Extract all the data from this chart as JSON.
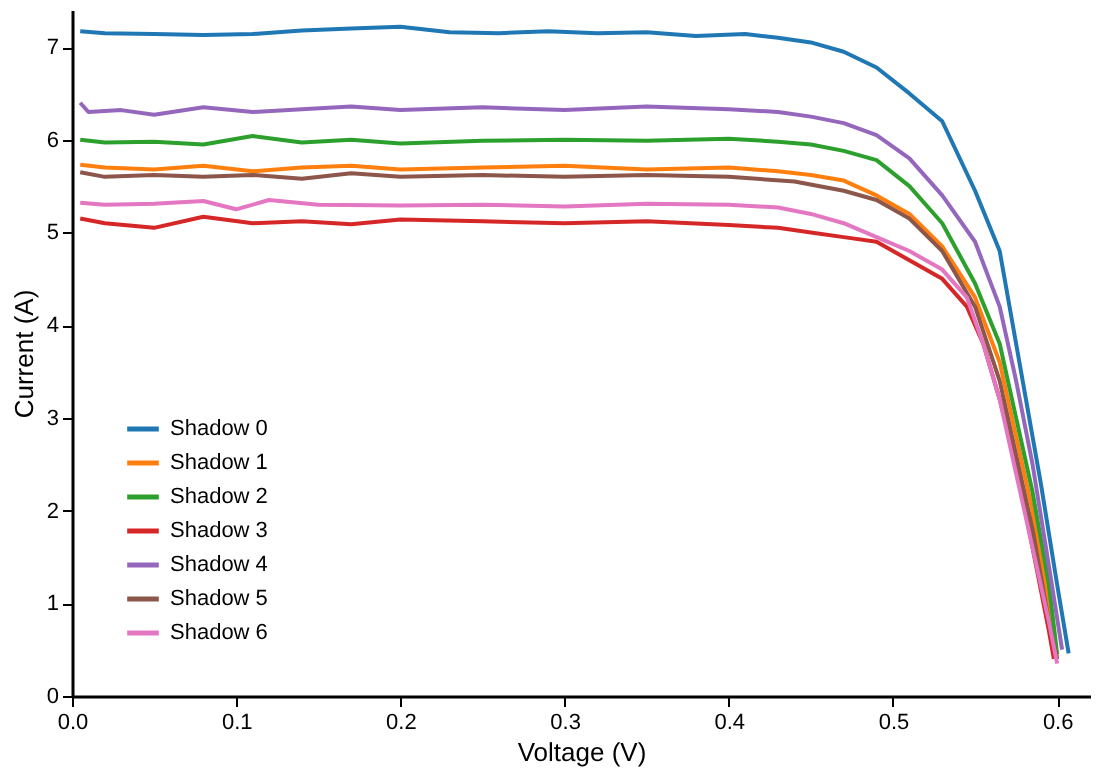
{
  "chart_data": {
    "type": "line",
    "xlabel": "Voltage (V)",
    "ylabel": "Current (A)",
    "xlim": [
      0,
      0.62
    ],
    "ylim": [
      0,
      7.4
    ],
    "xticks": [
      {
        "value": 0,
        "label": "0.0"
      },
      0.1,
      0.2,
      0.3,
      0.4,
      0.5,
      0.6
    ],
    "yticks": [
      0,
      1,
      2,
      3,
      4,
      5,
      6,
      7
    ],
    "grid": false,
    "legend": "bottom left",
    "marker": "none",
    "line_style": "solid",
    "series": [
      {
        "name": "Shadow 0",
        "color": "#1f77b4",
        "x": [
          0.005,
          0.02,
          0.05,
          0.08,
          0.11,
          0.14,
          0.17,
          0.2,
          0.23,
          0.26,
          0.29,
          0.32,
          0.35,
          0.38,
          0.41,
          0.43,
          0.45,
          0.47,
          0.49,
          0.51,
          0.53,
          0.55,
          0.565,
          0.58,
          0.59,
          0.6,
          0.607
        ],
        "values": [
          7.17,
          7.15,
          7.14,
          7.13,
          7.14,
          7.18,
          7.2,
          7.22,
          7.16,
          7.15,
          7.17,
          7.15,
          7.16,
          7.12,
          7.14,
          7.1,
          7.05,
          6.95,
          6.78,
          6.5,
          6.2,
          5.45,
          4.8,
          3.3,
          2.3,
          1.2,
          0.46
        ]
      },
      {
        "name": "Shadow 1",
        "color": "#ff7f0e",
        "x": [
          0.005,
          0.02,
          0.05,
          0.08,
          0.11,
          0.14,
          0.17,
          0.2,
          0.25,
          0.3,
          0.35,
          0.4,
          0.43,
          0.45,
          0.47,
          0.49,
          0.51,
          0.53,
          0.55,
          0.565,
          0.575,
          0.585,
          0.595,
          0.6
        ],
        "values": [
          5.73,
          5.7,
          5.68,
          5.72,
          5.66,
          5.7,
          5.72,
          5.68,
          5.7,
          5.72,
          5.68,
          5.7,
          5.66,
          5.62,
          5.56,
          5.4,
          5.2,
          4.85,
          4.3,
          3.6,
          2.8,
          2.0,
          1.0,
          0.4
        ]
      },
      {
        "name": "Shadow 2",
        "color": "#2ca02c",
        "x": [
          0.005,
          0.02,
          0.05,
          0.08,
          0.11,
          0.14,
          0.17,
          0.2,
          0.25,
          0.3,
          0.35,
          0.4,
          0.43,
          0.45,
          0.47,
          0.49,
          0.51,
          0.53,
          0.55,
          0.565,
          0.575,
          0.585,
          0.595,
          0.6
        ],
        "values": [
          6.0,
          5.97,
          5.98,
          5.95,
          6.04,
          5.97,
          6.0,
          5.96,
          5.99,
          6.0,
          5.99,
          6.01,
          5.98,
          5.95,
          5.88,
          5.78,
          5.5,
          5.1,
          4.45,
          3.8,
          3.0,
          2.2,
          1.2,
          0.45
        ]
      },
      {
        "name": "Shadow 3",
        "color": "#d62728",
        "x": [
          0.005,
          0.02,
          0.05,
          0.08,
          0.11,
          0.14,
          0.17,
          0.2,
          0.25,
          0.3,
          0.35,
          0.4,
          0.43,
          0.45,
          0.47,
          0.49,
          0.51,
          0.53,
          0.545,
          0.555,
          0.565,
          0.575,
          0.585,
          0.595,
          0.598
        ],
        "values": [
          5.15,
          5.1,
          5.05,
          5.17,
          5.1,
          5.12,
          5.09,
          5.14,
          5.12,
          5.1,
          5.12,
          5.08,
          5.05,
          5.0,
          4.95,
          4.9,
          4.7,
          4.5,
          4.2,
          3.8,
          3.2,
          2.5,
          1.6,
          0.7,
          0.4
        ]
      },
      {
        "name": "Shadow 4",
        "color": "#9467bd",
        "x": [
          0.005,
          0.01,
          0.03,
          0.05,
          0.08,
          0.11,
          0.14,
          0.17,
          0.2,
          0.25,
          0.3,
          0.35,
          0.4,
          0.43,
          0.45,
          0.47,
          0.49,
          0.51,
          0.53,
          0.55,
          0.565,
          0.575,
          0.585,
          0.595,
          0.603
        ],
        "values": [
          6.4,
          6.3,
          6.32,
          6.27,
          6.35,
          6.3,
          6.33,
          6.36,
          6.32,
          6.35,
          6.32,
          6.36,
          6.33,
          6.3,
          6.25,
          6.18,
          6.05,
          5.8,
          5.4,
          4.9,
          4.2,
          3.4,
          2.5,
          1.4,
          0.5
        ]
      },
      {
        "name": "Shadow 5",
        "color": "#8c564b",
        "x": [
          0.005,
          0.02,
          0.05,
          0.08,
          0.11,
          0.14,
          0.17,
          0.2,
          0.25,
          0.3,
          0.35,
          0.4,
          0.44,
          0.47,
          0.49,
          0.51,
          0.53,
          0.55,
          0.565,
          0.575,
          0.585,
          0.595,
          0.6
        ],
        "values": [
          5.65,
          5.6,
          5.62,
          5.6,
          5.62,
          5.58,
          5.64,
          5.6,
          5.62,
          5.6,
          5.62,
          5.6,
          5.55,
          5.45,
          5.35,
          5.15,
          4.8,
          4.2,
          3.4,
          2.6,
          1.8,
          0.8,
          0.4
        ]
      },
      {
        "name": "Shadow 6",
        "color": "#e377c2",
        "x": [
          0.005,
          0.02,
          0.05,
          0.08,
          0.1,
          0.12,
          0.15,
          0.2,
          0.25,
          0.3,
          0.35,
          0.4,
          0.43,
          0.45,
          0.47,
          0.49,
          0.51,
          0.53,
          0.545,
          0.555,
          0.565,
          0.575,
          0.585,
          0.595,
          0.6
        ],
        "values": [
          5.32,
          5.3,
          5.31,
          5.34,
          5.25,
          5.35,
          5.3,
          5.29,
          5.3,
          5.28,
          5.31,
          5.3,
          5.27,
          5.2,
          5.1,
          4.95,
          4.8,
          4.6,
          4.3,
          3.8,
          3.2,
          2.4,
          1.6,
          0.8,
          0.35
        ]
      }
    ]
  }
}
